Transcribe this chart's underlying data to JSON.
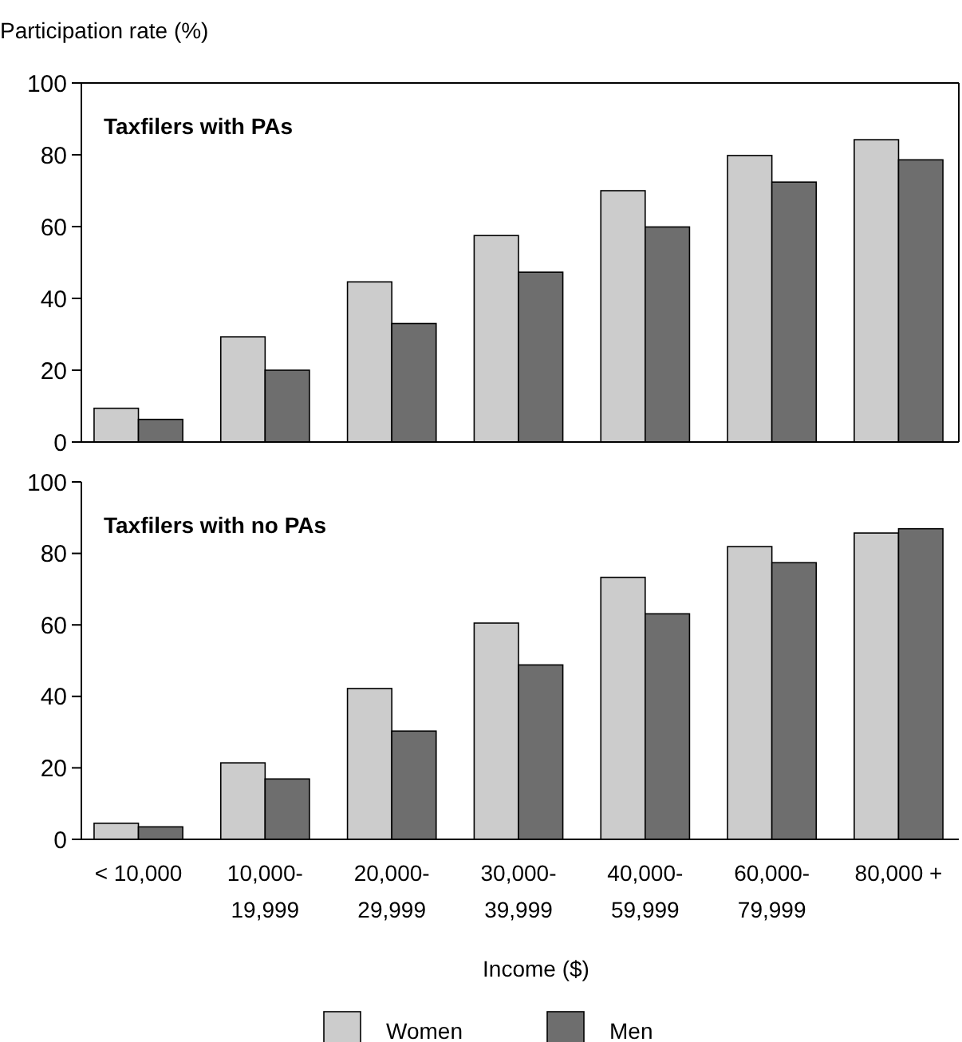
{
  "chart_data": [
    {
      "type": "bar",
      "title": "Taxfilers with PAs",
      "ylabel": "Participation rate (%)",
      "categories": [
        null,
        null,
        null,
        null,
        null,
        null,
        null
      ],
      "series": [
        {
          "color": "#cccccc",
          "values": [
            9.4,
            29.3,
            44.6,
            57.5,
            70,
            79.8,
            84.2
          ]
        },
        {
          "color": "#6e6e6e",
          "values": [
            6.3,
            20,
            33,
            47.3,
            59.9,
            72.4,
            78.6
          ]
        }
      ],
      "ylim": [
        0,
        100
      ],
      "yticks": [
        0,
        20,
        40,
        60,
        80,
        100
      ],
      "tick_labels": "y",
      "grid": false,
      "legend": false
    },
    {
      "type": "bar",
      "title": "Taxfilers with no PAs",
      "xlabel": "Income ($)",
      "categories": [
        "< 10,000",
        "10,000-\n19,999",
        "20,000-\n29,999",
        "30,000-\n39,999",
        "40,000-\n59,999",
        "60,000-\n79,999",
        "80,000 +"
      ],
      "series": [
        {
          "name": "Women",
          "color": "#cccccc",
          "values": [
            4.5,
            21.4,
            42.2,
            60.5,
            73.3,
            81.9,
            85.7
          ]
        },
        {
          "name": "Men",
          "color": "#6e6e6e",
          "values": [
            3.5,
            16.9,
            30.3,
            48.8,
            63.1,
            77.4,
            86.9
          ]
        }
      ],
      "ylim": [
        0,
        100
      ],
      "yticks": [
        0,
        20,
        40,
        60,
        80,
        100
      ],
      "grid": false,
      "legend": "bottom"
    }
  ]
}
